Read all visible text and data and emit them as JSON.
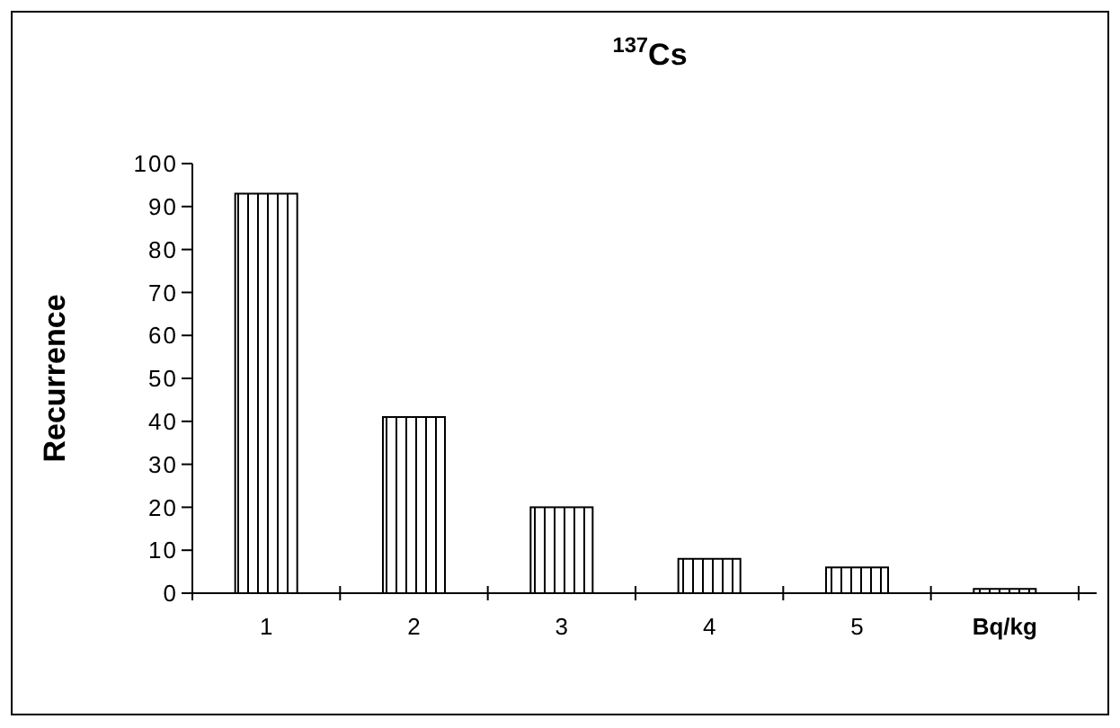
{
  "chart_data": {
    "type": "bar",
    "title": "$^{137}$Cs",
    "ylabel": "Recurrence",
    "xlabel": "Bq/kg",
    "categories": [
      "1",
      "2",
      "3",
      "4",
      "5",
      null
    ],
    "values": [
      93,
      41,
      20,
      8,
      6,
      1
    ],
    "color": "#000000",
    "ylim": [
      0,
      100
    ],
    "yticks": [
      0,
      10,
      20,
      30,
      40,
      50,
      60,
      70,
      80,
      90,
      100
    ],
    "grid": false
  }
}
